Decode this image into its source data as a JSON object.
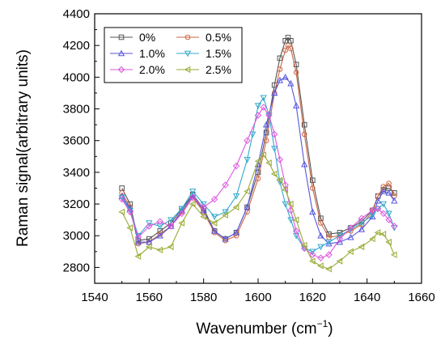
{
  "chart_data": {
    "type": "line",
    "title": "",
    "xlabel": "Wavenumber (cm",
    "xlabel_sup": "−1",
    "xlabel_close": ")",
    "ylabel": "Raman signal(arbitrary units)",
    "xlim": [
      1540,
      1660
    ],
    "ylim": [
      2700,
      4400
    ],
    "xticks": [
      "1540",
      "1560",
      "1580",
      "1600",
      "1620",
      "1640",
      "1660"
    ],
    "yticks": [
      "2800",
      "3000",
      "3200",
      "3400",
      "3600",
      "3800",
      "4000",
      "4200",
      "4400"
    ],
    "grid": false,
    "legend_position": "top-left",
    "series": [
      {
        "name": "0%",
        "color": "#555555",
        "marker": "square",
        "x": [
          1550,
          1553,
          1556,
          1560,
          1564,
          1568,
          1572,
          1576,
          1580,
          1584,
          1588,
          1592,
          1596,
          1600,
          1603,
          1606,
          1608,
          1610,
          1611,
          1612,
          1614,
          1617,
          1620,
          1623,
          1626,
          1630,
          1634,
          1638,
          1642,
          1644,
          1646,
          1648,
          1650
        ],
        "y": [
          3300,
          3200,
          2970,
          2980,
          3030,
          3080,
          3170,
          3260,
          3170,
          3030,
          2980,
          3020,
          3180,
          3400,
          3650,
          3950,
          4120,
          4230,
          4250,
          4230,
          4080,
          3700,
          3350,
          3110,
          3010,
          3020,
          3050,
          3090,
          3160,
          3250,
          3290,
          3300,
          3270
        ]
      },
      {
        "name": "0.5%",
        "color": "#cc6644",
        "marker": "circle",
        "x": [
          1550,
          1553,
          1556,
          1560,
          1564,
          1568,
          1572,
          1576,
          1580,
          1584,
          1588,
          1592,
          1596,
          1600,
          1603,
          1606,
          1608,
          1610,
          1611,
          1612,
          1614,
          1617,
          1620,
          1623,
          1626,
          1630,
          1634,
          1638,
          1642,
          1644,
          1646,
          1648,
          1650
        ],
        "y": [
          3270,
          3180,
          2950,
          2960,
          3010,
          3060,
          3150,
          3240,
          3150,
          3020,
          2970,
          3000,
          3150,
          3360,
          3600,
          3900,
          4050,
          4170,
          4200,
          4180,
          4030,
          3640,
          3300,
          3080,
          2990,
          3000,
          3030,
          3070,
          3150,
          3250,
          3310,
          3330,
          3250
        ]
      },
      {
        "name": "1.0%",
        "color": "#5555dd",
        "marker": "triangle-up",
        "x": [
          1550,
          1553,
          1556,
          1560,
          1564,
          1568,
          1572,
          1576,
          1580,
          1584,
          1588,
          1592,
          1596,
          1600,
          1603,
          1606,
          1608,
          1610,
          1612,
          1614,
          1617,
          1620,
          1623,
          1626,
          1630,
          1634,
          1638,
          1642,
          1644,
          1646,
          1648,
          1650
        ],
        "y": [
          3250,
          3170,
          2960,
          2960,
          3000,
          3060,
          3160,
          3250,
          3160,
          3030,
          2980,
          3020,
          3180,
          3450,
          3700,
          3900,
          3980,
          4000,
          3960,
          3820,
          3450,
          3150,
          3000,
          2950,
          2960,
          2990,
          3040,
          3120,
          3220,
          3280,
          3270,
          3220
        ]
      },
      {
        "name": "1.5%",
        "color": "#33aacc",
        "marker": "triangle-down",
        "x": [
          1550,
          1553,
          1556,
          1560,
          1564,
          1568,
          1572,
          1576,
          1580,
          1584,
          1588,
          1592,
          1596,
          1598,
          1600,
          1602,
          1604,
          1606,
          1608,
          1610,
          1612,
          1614,
          1617,
          1620,
          1623,
          1626,
          1630,
          1634,
          1638,
          1642,
          1644,
          1646,
          1648,
          1650
        ],
        "y": [
          3240,
          3160,
          3000,
          3080,
          3060,
          3100,
          3170,
          3280,
          3200,
          3120,
          3150,
          3250,
          3480,
          3640,
          3820,
          3870,
          3760,
          3550,
          3340,
          3200,
          3100,
          3000,
          2920,
          2900,
          2930,
          2960,
          3000,
          3040,
          3080,
          3130,
          3170,
          3200,
          3140,
          3050
        ]
      },
      {
        "name": "2.0%",
        "color": "#dd55dd",
        "marker": "diamond",
        "x": [
          1550,
          1553,
          1556,
          1560,
          1564,
          1568,
          1572,
          1576,
          1580,
          1584,
          1588,
          1592,
          1596,
          1600,
          1602,
          1604,
          1606,
          1608,
          1610,
          1612,
          1614,
          1617,
          1620,
          1623,
          1626,
          1630,
          1634,
          1638,
          1642,
          1644,
          1646,
          1648,
          1650
        ],
        "y": [
          3230,
          3150,
          2990,
          3060,
          3090,
          3060,
          3140,
          3240,
          3180,
          3230,
          3320,
          3440,
          3600,
          3760,
          3810,
          3760,
          3640,
          3480,
          3320,
          3160,
          3030,
          2920,
          2880,
          2860,
          2880,
          2980,
          3050,
          3110,
          3160,
          3170,
          3140,
          3100,
          3060
        ]
      },
      {
        "name": "2.5%",
        "color": "#99aa33",
        "marker": "triangle-left",
        "x": [
          1550,
          1553,
          1556,
          1560,
          1564,
          1568,
          1572,
          1576,
          1580,
          1584,
          1588,
          1592,
          1596,
          1600,
          1602,
          1604,
          1606,
          1608,
          1610,
          1612,
          1614,
          1617,
          1620,
          1623,
          1626,
          1630,
          1634,
          1638,
          1642,
          1644,
          1646,
          1648,
          1650
        ],
        "y": [
          3150,
          3050,
          2870,
          2930,
          2910,
          2930,
          3080,
          3200,
          3120,
          3080,
          3130,
          3180,
          3280,
          3470,
          3510,
          3460,
          3390,
          3350,
          3290,
          3200,
          3100,
          2940,
          2840,
          2810,
          2790,
          2840,
          2900,
          2930,
          2980,
          3020,
          3010,
          2960,
          2880
        ]
      }
    ]
  }
}
